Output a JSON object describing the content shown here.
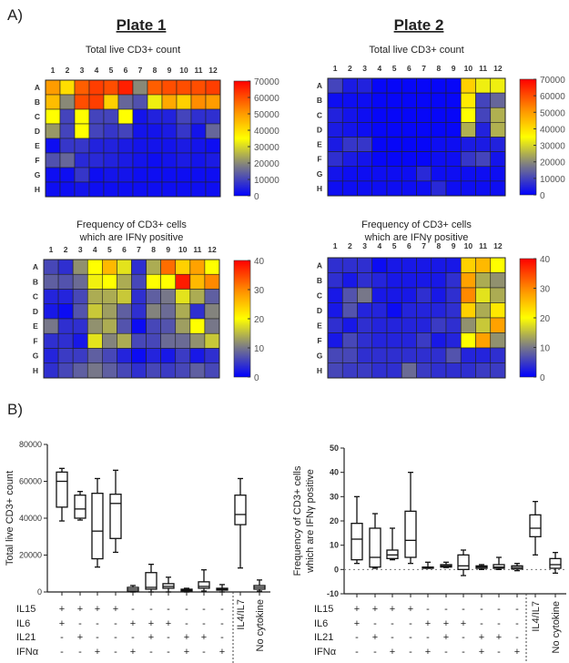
{
  "panel_a_label": "A)",
  "panel_b_label": "B)",
  "plates": [
    "Plate 1",
    "Plate 2"
  ],
  "colormap": [
    "#0000ff",
    "#808080",
    "#ffff00",
    "#ff9900",
    "#ff0000"
  ],
  "chart_data": [
    {
      "type": "heatmap",
      "plate": "Plate 1",
      "title": "Total live CD3+ count",
      "columns": [
        "1",
        "2",
        "3",
        "4",
        "5",
        "6",
        "7",
        "8",
        "9",
        "10",
        "11",
        "12"
      ],
      "rows": [
        "A",
        "B",
        "C",
        "D",
        "E",
        "F",
        "G",
        "H"
      ],
      "colorbar_ticks": [
        "0",
        "10000",
        "20000",
        "30000",
        "40000",
        "50000",
        "60000",
        "70000"
      ],
      "range": [
        0,
        70000
      ],
      "values": [
        [
          50000,
          40000,
          58000,
          62000,
          60000,
          66000,
          20000,
          58000,
          60000,
          60000,
          60000,
          62000
        ],
        [
          45000,
          20000,
          60000,
          62000,
          42000,
          15000,
          12000,
          33000,
          48000,
          42000,
          52000,
          50000
        ],
        [
          35000,
          10000,
          35000,
          10000,
          10000,
          35000,
          3000,
          5000,
          5000,
          10000,
          7000,
          7000
        ],
        [
          22000,
          10000,
          35000,
          10000,
          8000,
          10000,
          3000,
          3000,
          4000,
          8000,
          3000,
          15000
        ],
        [
          2000,
          8000,
          8000,
          5000,
          5000,
          4000,
          3000,
          3000,
          3000,
          4000,
          3000,
          2000
        ],
        [
          12000,
          15000,
          6000,
          6000,
          5000,
          4000,
          3000,
          2000,
          3000,
          4000,
          3000,
          4000
        ],
        [
          2000,
          2000,
          8000,
          2000,
          3000,
          3000,
          2000,
          2000,
          2000,
          2000,
          2000,
          2000
        ],
        [
          2000,
          2000,
          3000,
          2000,
          2000,
          2000,
          2000,
          2000,
          2000,
          2000,
          2000,
          2000
        ]
      ]
    },
    {
      "type": "heatmap",
      "plate": "Plate 2",
      "title": "Total live CD3+ count",
      "columns": [
        "1",
        "2",
        "3",
        "4",
        "5",
        "6",
        "7",
        "8",
        "9",
        "10",
        "11",
        "12"
      ],
      "rows": [
        "A",
        "B",
        "C",
        "D",
        "E",
        "F",
        "G",
        "H"
      ],
      "colorbar_ticks": [
        "0",
        "10000",
        "20000",
        "30000",
        "40000",
        "50000",
        "60000",
        "70000"
      ],
      "range": [
        0,
        70000
      ],
      "values": [
        [
          10000,
          4000,
          5000,
          1000,
          1000,
          1000,
          1000,
          1000,
          1000,
          42000,
          33000,
          33000
        ],
        [
          2000,
          2000,
          2000,
          1000,
          1000,
          1000,
          1000,
          1000,
          1000,
          38000,
          10000,
          15000
        ],
        [
          5000,
          3000,
          2000,
          1000,
          1000,
          1000,
          1000,
          1000,
          1000,
          35000,
          10000,
          25000
        ],
        [
          4000,
          3000,
          2000,
          1000,
          1000,
          1000,
          1000,
          1000,
          1000,
          25000,
          5000,
          25000
        ],
        [
          4000,
          8000,
          8000,
          1000,
          1000,
          1000,
          1000,
          2000,
          2000,
          4000,
          4000,
          5000
        ],
        [
          7000,
          4000,
          3000,
          1000,
          1000,
          1000,
          1000,
          2000,
          2000,
          8000,
          10000,
          3000
        ],
        [
          3000,
          2000,
          2000,
          2000,
          2000,
          2000,
          6000,
          2000,
          2000,
          2000,
          2000,
          2000
        ],
        [
          2000,
          2000,
          2000,
          2000,
          2000,
          2000,
          2000,
          6000,
          2000,
          2000,
          2000,
          2000
        ]
      ]
    },
    {
      "type": "heatmap",
      "plate": "Plate 1",
      "title": [
        "Frequency of CD3+ cells",
        "which are IFNγ positive"
      ],
      "columns": [
        "1",
        "2",
        "3",
        "4",
        "5",
        "6",
        "7",
        "8",
        "9",
        "10",
        "11",
        "12"
      ],
      "rows": [
        "A",
        "B",
        "C",
        "D",
        "E",
        "F",
        "G",
        "H"
      ],
      "colorbar_ticks": [
        "0",
        "10",
        "20",
        "30",
        "40"
      ],
      "range": [
        0,
        40
      ],
      "values": [
        [
          6,
          4,
          12,
          20,
          26,
          18,
          4,
          14,
          32,
          24,
          28,
          20
        ],
        [
          8,
          7,
          9,
          19,
          20,
          14,
          6,
          20,
          20,
          38,
          26,
          30
        ],
        [
          3,
          3,
          6,
          14,
          14,
          16,
          4,
          8,
          10,
          18,
          14,
          8
        ],
        [
          2,
          1,
          7,
          16,
          13,
          8,
          4,
          11,
          9,
          14,
          4,
          11
        ],
        [
          10,
          4,
          4,
          12,
          14,
          7,
          1,
          6,
          7,
          13,
          20,
          10
        ],
        [
          4,
          4,
          2,
          18,
          11,
          14,
          6,
          6,
          9,
          9,
          12,
          16
        ],
        [
          3,
          5,
          5,
          8,
          6,
          3,
          1,
          3,
          2,
          5,
          2,
          4
        ],
        [
          4,
          6,
          8,
          10,
          8,
          6,
          4,
          6,
          5,
          6,
          8,
          6
        ]
      ]
    },
    {
      "type": "heatmap",
      "plate": "Plate 2",
      "title": [
        "Frequency of CD3+ cells",
        "which are IFNγ positive"
      ],
      "columns": [
        "1",
        "2",
        "3",
        "4",
        "5",
        "6",
        "7",
        "8",
        "9",
        "10",
        "11",
        "12"
      ],
      "rows": [
        "A",
        "B",
        "C",
        "D",
        "E",
        "F",
        "G",
        "H"
      ],
      "colorbar_ticks": [
        "0",
        "10",
        "20",
        "30",
        "40"
      ],
      "range": [
        0,
        40
      ],
      "values": [
        [
          4,
          4,
          4,
          1,
          2,
          2,
          2,
          2,
          2,
          24,
          26,
          20
        ],
        [
          4,
          2,
          4,
          3,
          2,
          2,
          2,
          2,
          4,
          28,
          14,
          12
        ],
        [
          2,
          7,
          10,
          2,
          2,
          2,
          4,
          2,
          4,
          30,
          18,
          14
        ],
        [
          2,
          7,
          3,
          3,
          1,
          3,
          3,
          3,
          4,
          24,
          14,
          22
        ],
        [
          4,
          2,
          4,
          3,
          3,
          3,
          3,
          5,
          4,
          12,
          16,
          28
        ],
        [
          2,
          6,
          4,
          3,
          3,
          3,
          5,
          2,
          3,
          20,
          28,
          12
        ],
        [
          6,
          6,
          4,
          4,
          4,
          4,
          4,
          4,
          7,
          3,
          3,
          4
        ],
        [
          6,
          5,
          5,
          4,
          4,
          9,
          5,
          4,
          4,
          4,
          5,
          5
        ]
      ]
    },
    {
      "type": "box",
      "ylabel": "Total live CD3+ count",
      "ylim": [
        0,
        80000
      ],
      "yticks": [
        "0",
        "20000",
        "40000",
        "60000",
        "80000"
      ],
      "ytick_values": [
        0,
        20000,
        40000,
        60000,
        80000
      ],
      "zero_line": false,
      "factor_rows": [
        {
          "label": "IL15",
          "marks": [
            "+",
            "+",
            "+",
            "+",
            "-",
            "-",
            "-",
            "-",
            "-",
            "-"
          ]
        },
        {
          "label": "IL6",
          "marks": [
            "+",
            "-",
            "-",
            "-",
            "+",
            "+",
            "+",
            "-",
            "-",
            "-"
          ]
        },
        {
          "label": "IL21",
          "marks": [
            "-",
            "+",
            "-",
            "-",
            "-",
            "+",
            "-",
            "+",
            "+",
            "-"
          ]
        },
        {
          "label": "IFNα",
          "marks": [
            "-",
            "-",
            "+",
            "-",
            "+",
            "-",
            "-",
            "+",
            "-",
            "+"
          ]
        }
      ],
      "extra_groups": [
        "IL4/IL7",
        "No cytokine"
      ],
      "boxes": [
        [
          38500,
          46000,
          60000,
          65000,
          67000
        ],
        [
          39000,
          40000,
          45000,
          52500,
          54500
        ],
        [
          13500,
          18000,
          33000,
          53500,
          61500
        ],
        [
          21500,
          29000,
          48000,
          53000,
          66000
        ],
        [
          0,
          500,
          1500,
          2500,
          3500
        ],
        [
          0,
          1500,
          2500,
          10500,
          15000
        ],
        [
          0,
          2000,
          3000,
          4500,
          8000
        ],
        [
          0,
          500,
          1000,
          1500,
          2000
        ],
        [
          500,
          2000,
          3000,
          5500,
          12000
        ],
        [
          0,
          1000,
          1500,
          2000,
          4000
        ],
        [
          13000,
          36500,
          42000,
          52500,
          61500
        ],
        [
          500,
          1500,
          2500,
          3500,
          6500
        ]
      ]
    },
    {
      "type": "box",
      "ylabel": [
        "Frequency of CD3+ cells",
        "which are IFNγ positive"
      ],
      "ylim": [
        -10,
        50
      ],
      "yticks": [
        "-10",
        "0",
        "10",
        "20",
        "30",
        "40",
        "50"
      ],
      "ytick_values": [
        -10,
        0,
        10,
        20,
        30,
        40,
        50
      ],
      "zero_line": true,
      "factor_rows": [
        {
          "label": "IL15",
          "marks": [
            "+",
            "+",
            "+",
            "+",
            "-",
            "-",
            "-",
            "-",
            "-",
            "-"
          ]
        },
        {
          "label": "IL6",
          "marks": [
            "+",
            "-",
            "-",
            "-",
            "+",
            "+",
            "+",
            "-",
            "-",
            "-"
          ]
        },
        {
          "label": "IL21",
          "marks": [
            "-",
            "+",
            "-",
            "-",
            "-",
            "+",
            "-",
            "+",
            "+",
            "-"
          ]
        },
        {
          "label": "IFNα",
          "marks": [
            "-",
            "-",
            "+",
            "-",
            "+",
            "-",
            "-",
            "+",
            "-",
            "+"
          ]
        }
      ],
      "extra_groups": [
        "IL4/IL7",
        "No cytokine"
      ],
      "boxes": [
        [
          2.5,
          4,
          12.5,
          19,
          30
        ],
        [
          0.5,
          1,
          5,
          17,
          23
        ],
        [
          4,
          4.5,
          6,
          8,
          17
        ],
        [
          2.5,
          5,
          12,
          24,
          40
        ],
        [
          0.5,
          0.5,
          0.8,
          1,
          3
        ],
        [
          0.8,
          1,
          1.5,
          2,
          3
        ],
        [
          -2.5,
          0,
          1.5,
          6,
          8
        ],
        [
          0,
          0.5,
          1,
          1.5,
          2
        ],
        [
          0,
          0.5,
          1,
          2,
          5
        ],
        [
          -0.5,
          0.2,
          0.8,
          1.5,
          2.5
        ],
        [
          6,
          13.5,
          17,
          22.5,
          28
        ],
        [
          -1.5,
          0.5,
          2,
          4.5,
          7
        ]
      ]
    }
  ]
}
